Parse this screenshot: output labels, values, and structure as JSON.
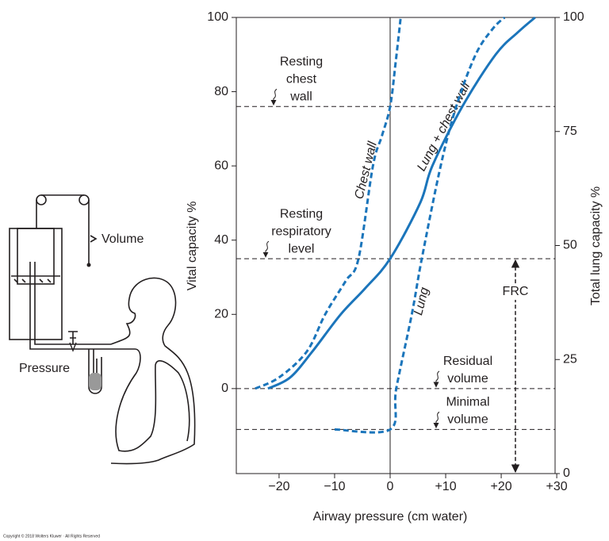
{
  "chart_data": {
    "type": "line",
    "ylabel": "Vital capacity %",
    "y2label": "Total lung capacity %",
    "xlabel": "Airway pressure (cm water)",
    "xlim": [
      -27.7,
      29.7
    ],
    "xticks": [
      {
        "value": -20,
        "label": "−20"
      },
      {
        "value": -10,
        "label": "−10"
      },
      0,
      {
        "value": 10,
        "label": "+10"
      },
      {
        "value": 20,
        "label": "+20"
      },
      {
        "value": 30,
        "label": "+30"
      }
    ],
    "ylim": [
      -22.9,
      100
    ],
    "yticks": [
      0,
      20,
      40,
      60,
      80,
      100
    ],
    "y2lim": [
      0,
      100
    ],
    "y2ticks": [
      0,
      25,
      50,
      75,
      100
    ],
    "series": [
      {
        "name": "Chest wall",
        "color": "#1b75bb",
        "dashed": true,
        "x": [
          -24.3,
          -20,
          -15,
          -11.7,
          -8,
          -5.7,
          -3.1,
          -1.5,
          0,
          1,
          1.9
        ],
        "values": [
          0,
          3,
          10,
          20,
          29,
          35,
          60,
          68,
          76,
          88,
          100
        ]
      },
      {
        "name": "Lung + chest wall",
        "color": "#1b75bb",
        "dashed": false,
        "x": [
          -22,
          -18,
          -14,
          -8.9,
          -4.5,
          0,
          5.4,
          7.6,
          13,
          19,
          23,
          26.1
        ],
        "values": [
          0,
          3,
          10,
          20,
          27,
          35,
          50,
          60,
          76,
          90,
          96,
          100
        ]
      },
      {
        "name": "Lung",
        "color": "#1b75bb",
        "dashed": true,
        "x": [
          -10,
          0,
          1.1,
          3.9,
          5.7,
          9.1,
          11.9,
          15.4,
          18.5,
          20.6
        ],
        "values": [
          -11,
          -11,
          0,
          20,
          35,
          60,
          76,
          90,
          97,
          100
        ]
      }
    ],
    "reference_lines": [
      {
        "label": [
          "Resting",
          "chest",
          "wall"
        ],
        "value": 76
      },
      {
        "label": [
          "Resting",
          "respiratory",
          "level"
        ],
        "value": 35
      },
      {
        "label": [
          "Residual",
          "volume"
        ],
        "value": 0
      },
      {
        "label": [
          "Minimal",
          "volume"
        ],
        "value": -11
      }
    ],
    "frc_label": "FRC",
    "apparatus": {
      "volume_label": "Volume",
      "pressure_label": "Pressure"
    },
    "copyright": "Copyright © 2018 Wolters Kluwer · All Rights Reserved"
  }
}
